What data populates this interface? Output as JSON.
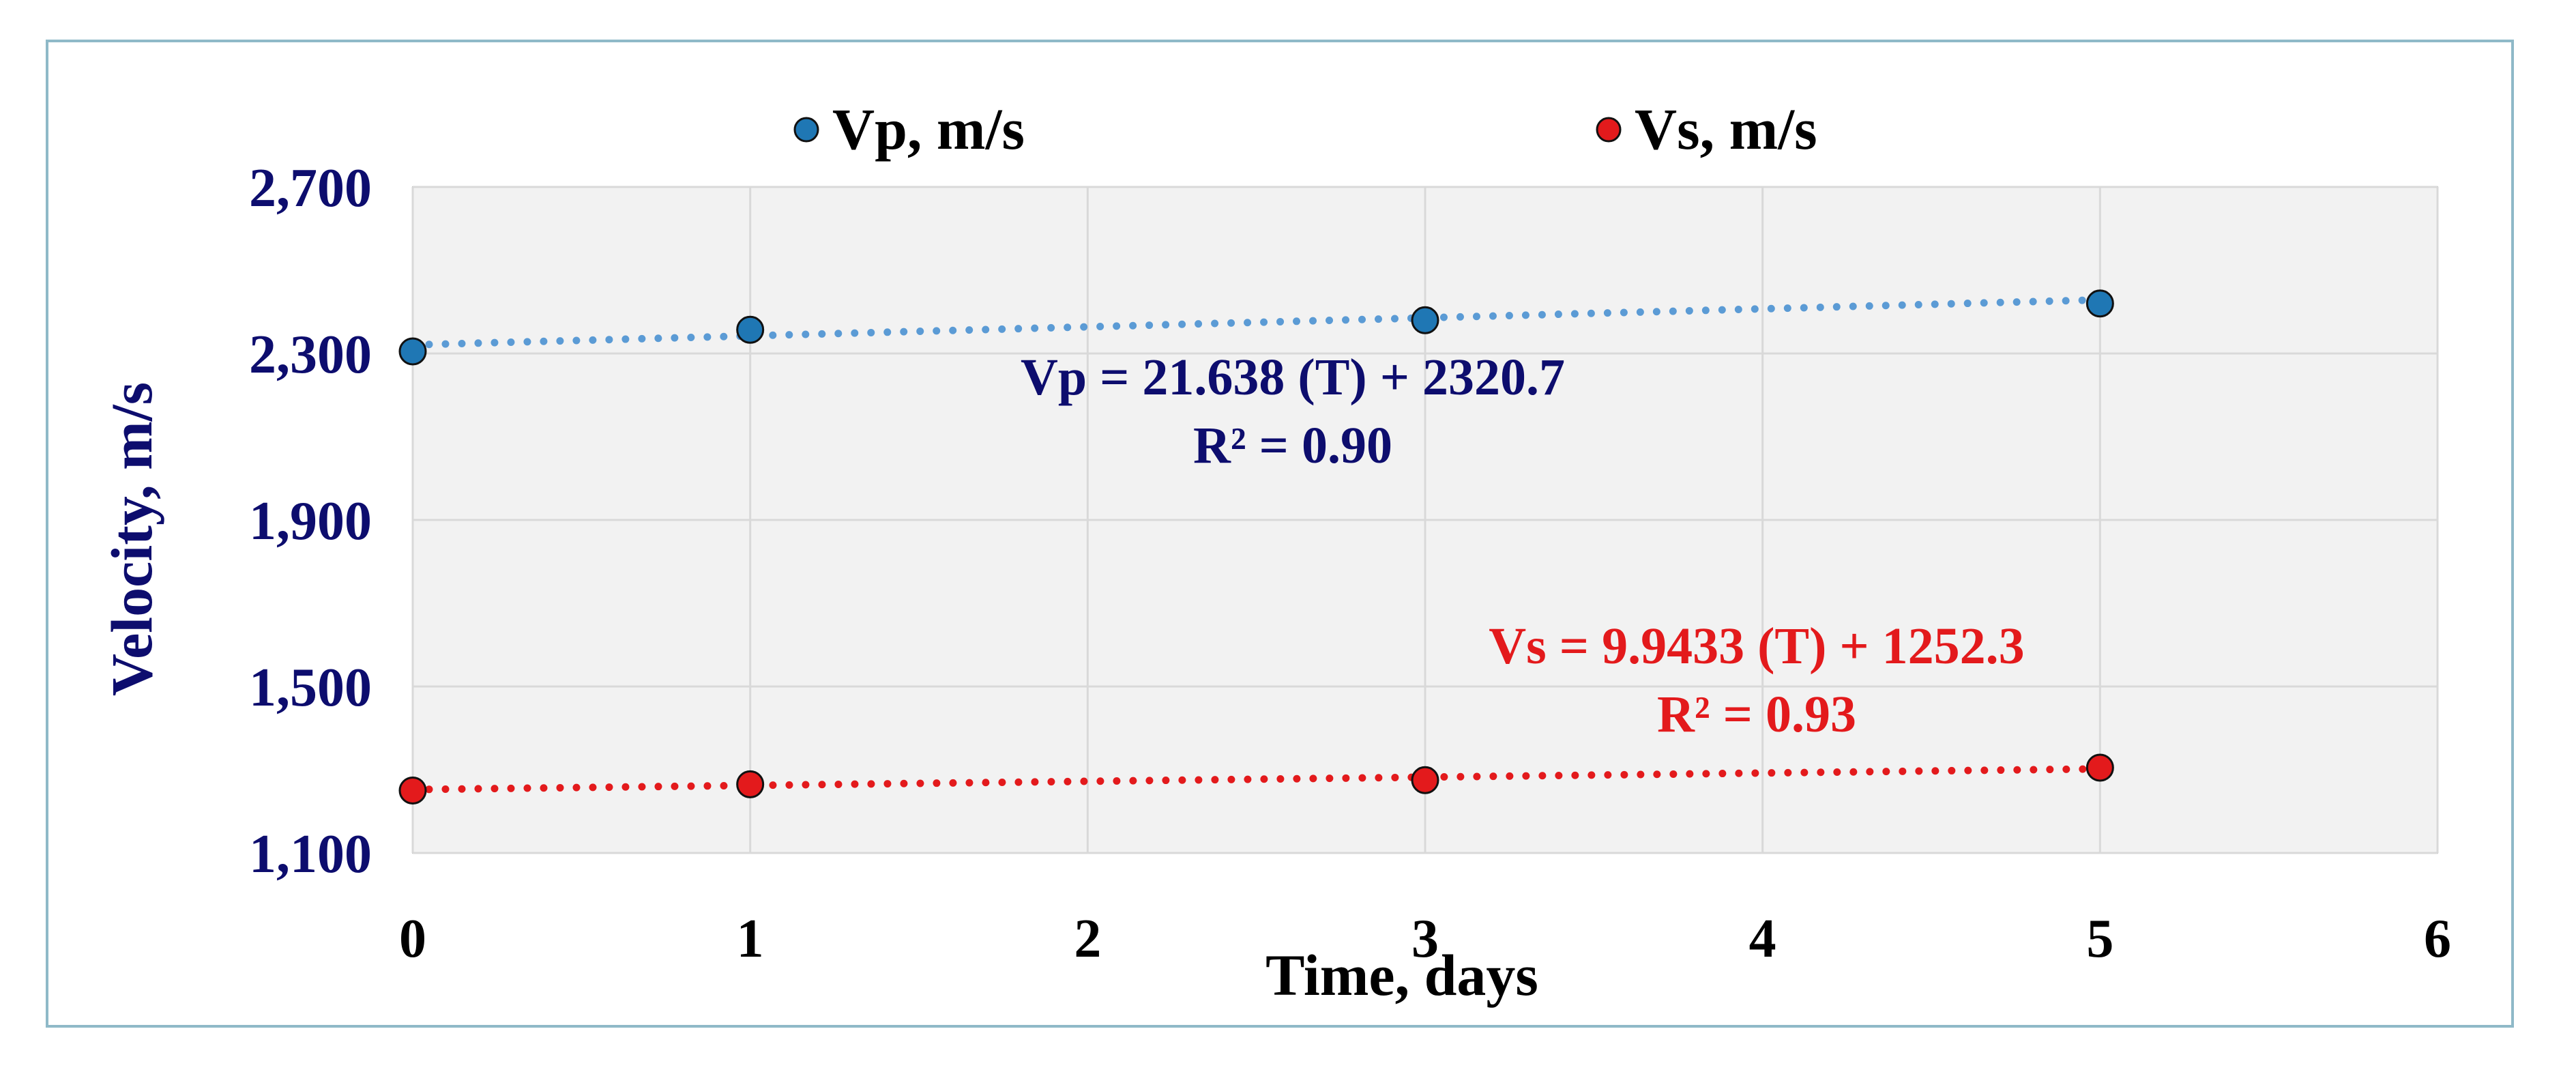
{
  "chart_data": {
    "type": "scatter",
    "title": "",
    "xlabel": "Time, days",
    "ylabel": "Velocity, m/s",
    "xlim": [
      0,
      6
    ],
    "ylim": [
      1100,
      2700
    ],
    "x_ticks": [
      0,
      1,
      2,
      3,
      4,
      5,
      6
    ],
    "x_tick_labels": [
      "0",
      "1",
      "2",
      "3",
      "4",
      "5",
      "6"
    ],
    "y_ticks": [
      1100,
      1500,
      1900,
      2300,
      2700
    ],
    "y_tick_labels": [
      "1,100",
      "1,500",
      "1,900",
      "2,300",
      "2,700"
    ],
    "grid": true,
    "legend_position": "top",
    "series": [
      {
        "name": "Vp, m/s",
        "color": "#1f77b4",
        "trend_color": "#5b9bd5",
        "x": [
          0,
          1,
          3,
          5
        ],
        "y": [
          2305,
          2357,
          2380,
          2420
        ],
        "trendline": {
          "slope": 21.638,
          "intercept": 2320.7
        },
        "equation_label": "Vp = 21.638 (T) + 2320.7",
        "r2_label": "R² = 0.90"
      },
      {
        "name": "Vs, m/s",
        "color": "#e31a1c",
        "trend_color": "#e31a1c",
        "x": [
          0,
          1,
          3,
          5
        ],
        "y": [
          1250,
          1265,
          1275,
          1305
        ],
        "trendline": {
          "slope": 9.9433,
          "intercept": 1252.3
        },
        "equation_label": "Vs = 9.9433 (T) + 1252.3",
        "r2_label": "R² = 0.93"
      }
    ]
  },
  "colors": {
    "plot_background": "#f2f2f2",
    "frame_border": "#8fb9c8",
    "grid": "#d9d9d9",
    "ylabel_color": "#0d0d6e",
    "vp_label_color": "#0d0d6e",
    "vs_label_color": "#e31a1c"
  }
}
